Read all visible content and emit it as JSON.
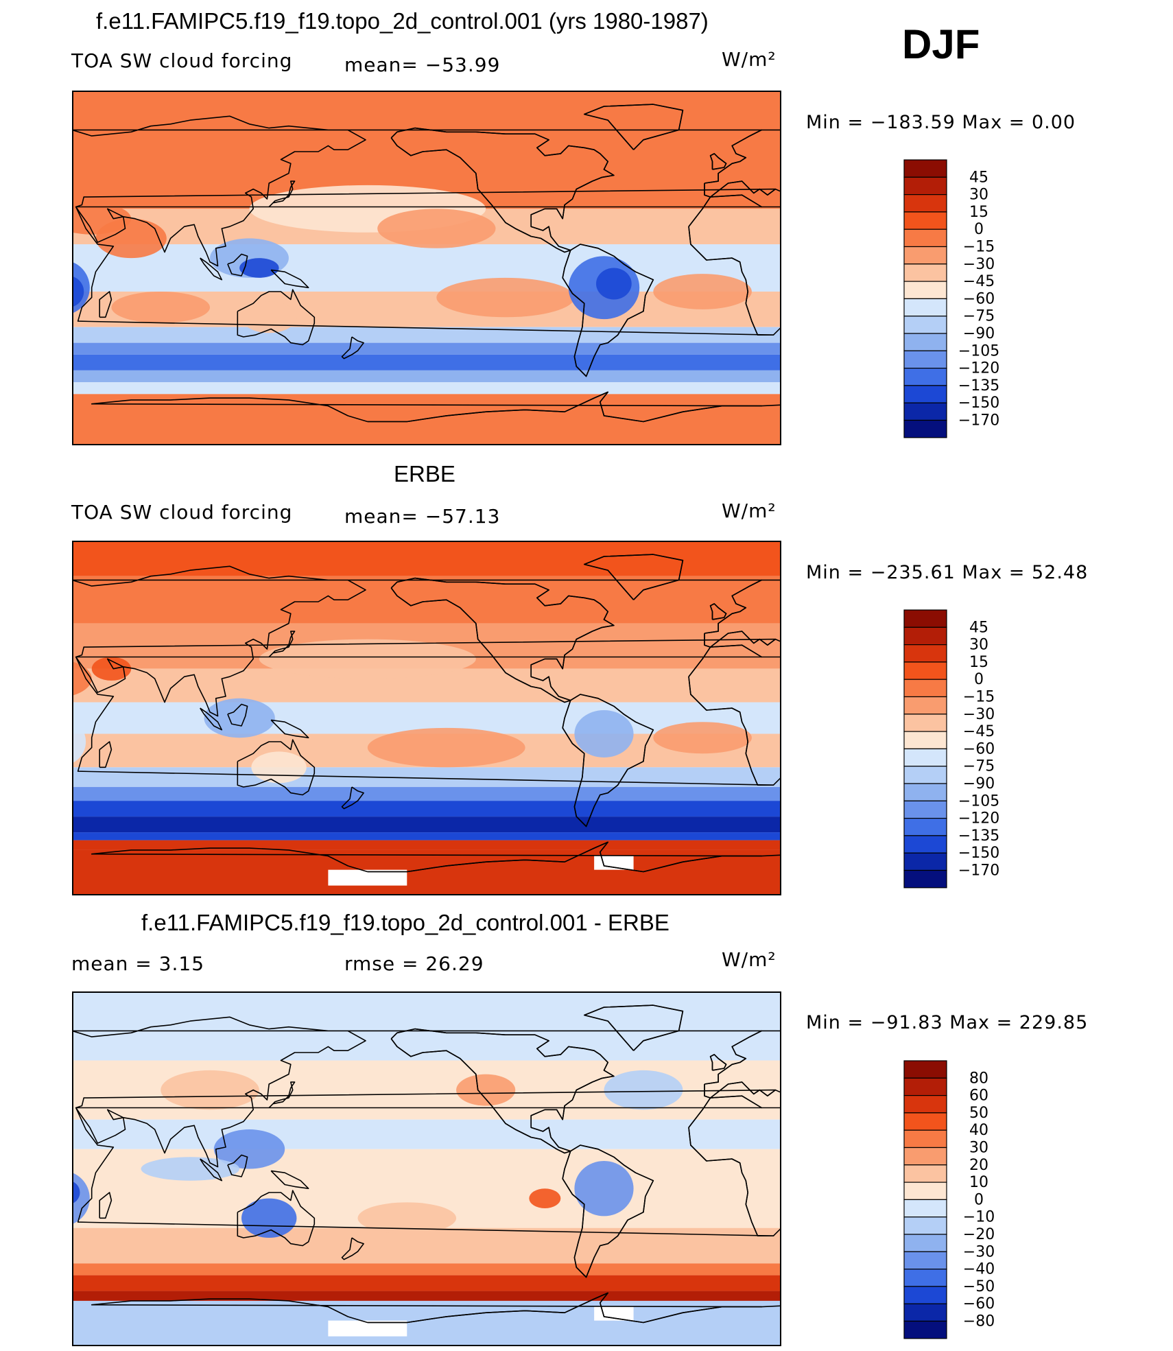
{
  "season": "DJF",
  "chart_data": [
    {
      "type": "heatmap",
      "title": "f.e11.FAMIPC5.f19_f19.topo_2d_control.001 (yrs 1980-1987)",
      "left_label": "TOA SW cloud forcing",
      "center_label": "mean=  −53.99",
      "units_label": "W/m²",
      "min_max": "Min  =  −183.59  Max  =     0.00",
      "stats": {
        "mean": -53.99,
        "min": -183.59,
        "max": 0.0
      },
      "colorbar": {
        "levels": [
          "45",
          "30",
          "15",
          "0",
          "−15",
          "−30",
          "−45",
          "−60",
          "−75",
          "−90",
          "−105",
          "−120",
          "−135",
          "−150",
          "−170"
        ],
        "colors": [
          "#8b0d02",
          "#b31e07",
          "#d8350d",
          "#f2541c",
          "#f77a45",
          "#f99c6f",
          "#fbc3a1",
          "#fde6d2",
          "#d4e6fb",
          "#b4cff6",
          "#8fb2ef",
          "#6a92eb",
          "#3f6fe6",
          "#1c48d5",
          "#0b27a8",
          "#040f7d"
        ]
      }
    },
    {
      "type": "heatmap",
      "title": "ERBE",
      "left_label": "TOA SW cloud forcing",
      "center_label": "mean=  −57.13",
      "units_label": "W/m²",
      "min_max": "Min  =  −235.61  Max  =    52.48",
      "stats": {
        "mean": -57.13,
        "min": -235.61,
        "max": 52.48
      },
      "colorbar": {
        "levels": [
          "45",
          "30",
          "15",
          "0",
          "−15",
          "−30",
          "−45",
          "−60",
          "−75",
          "−90",
          "−105",
          "−120",
          "−135",
          "−150",
          "−170"
        ],
        "colors": [
          "#8b0d02",
          "#b31e07",
          "#d8350d",
          "#f2541c",
          "#f77a45",
          "#f99c6f",
          "#fbc3a1",
          "#fde6d2",
          "#d4e6fb",
          "#b4cff6",
          "#8fb2ef",
          "#6a92eb",
          "#3f6fe6",
          "#1c48d5",
          "#0b27a8",
          "#040f7d"
        ]
      }
    },
    {
      "type": "heatmap",
      "title": "f.e11.FAMIPC5.f19_f19.topo_2d_control.001 - ERBE",
      "left_label": "mean  =     3.15",
      "center_label": "rmse  =    26.29",
      "units_label": "W/m²",
      "min_max": "Min  =  −91.83  Max  =  229.85",
      "stats": {
        "mean": 3.15,
        "rmse": 26.29,
        "min": -91.83,
        "max": 229.85
      },
      "colorbar": {
        "levels": [
          "80",
          "60",
          "50",
          "40",
          "30",
          "20",
          "10",
          "0",
          "−10",
          "−20",
          "−30",
          "−40",
          "−50",
          "−60",
          "−80"
        ],
        "colors": [
          "#8b0d02",
          "#b31e07",
          "#d8350d",
          "#f2541c",
          "#f77a45",
          "#f99c6f",
          "#fbc3a1",
          "#fde6d2",
          "#d4e6fb",
          "#b4cff6",
          "#8fb2ef",
          "#6a92eb",
          "#3f6fe6",
          "#1c48d5",
          "#0b27a8",
          "#040f7d"
        ]
      }
    }
  ]
}
